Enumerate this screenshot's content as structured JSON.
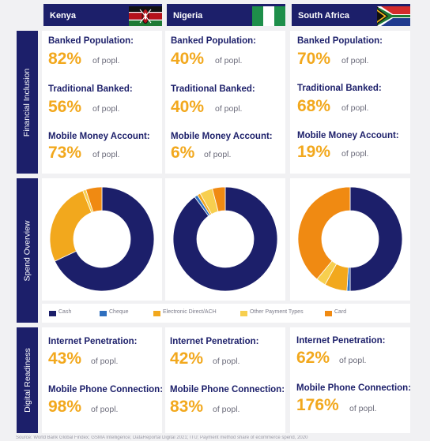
{
  "countries": [
    {
      "name": "Kenya",
      "flag_icon": "kenya-flag-icon",
      "financial_inclusion": [
        {
          "label": "Banked Population:",
          "value": "82%",
          "unit": "of popl."
        },
        {
          "label": "Traditional Banked:",
          "value": "56%",
          "unit": "of popl."
        },
        {
          "label": "Mobile Money Account:",
          "value": "73%",
          "unit": "of popl."
        }
      ],
      "digital_readiness": [
        {
          "label": "Internet Penetration:",
          "value": "43%",
          "unit": "of popl."
        },
        {
          "label": "Mobile Phone Connection:",
          "value": "98%",
          "unit": "of popl."
        }
      ]
    },
    {
      "name": "Nigeria",
      "flag_icon": "nigeria-flag-icon",
      "financial_inclusion": [
        {
          "label": "Banked Population:",
          "value": "40%",
          "unit": "of popl."
        },
        {
          "label": "Traditional Banked:",
          "value": "40%",
          "unit": "of popl."
        },
        {
          "label": "Mobile Money Account:",
          "value": "6%",
          "unit": "of popl."
        }
      ],
      "digital_readiness": [
        {
          "label": "Internet Penetration:",
          "value": "42%",
          "unit": "of popl."
        },
        {
          "label": "Mobile Phone Connection:",
          "value": "83%",
          "unit": "of popl."
        }
      ]
    },
    {
      "name": "South Africa",
      "flag_icon": "south-africa-flag-icon",
      "financial_inclusion": [
        {
          "label": "Banked Population:",
          "value": "70%",
          "unit": "of popl."
        },
        {
          "label": "Traditional Banked:",
          "value": "68%",
          "unit": "of popl."
        },
        {
          "label": "Mobile Money Account:",
          "value": "19%",
          "unit": "of popl."
        }
      ],
      "digital_readiness": [
        {
          "label": "Internet Penetration:",
          "value": "62%",
          "unit": "of popl."
        },
        {
          "label": "Mobile Phone Connection:",
          "value": "176%",
          "unit": "of popl."
        }
      ]
    }
  ],
  "sections": {
    "financial_inclusion": "Financial Inclusion",
    "spend_overview": "Spend Overview",
    "digital_readiness": "Digital Readiness"
  },
  "legend": [
    {
      "label": "Cash",
      "color": "#1c1f6a"
    },
    {
      "label": "Cheque",
      "color": "#2f6fbe"
    },
    {
      "label": "Electronic Direct/ACH",
      "color": "#f2a81d"
    },
    {
      "label": "Other Payment Types",
      "color": "#f7cf4f"
    },
    {
      "label": "Card",
      "color": "#f08a12"
    }
  ],
  "chart_data": [
    {
      "type": "pie",
      "title": "",
      "labels": [
        "Cash",
        "Cheque",
        "Electronic Direct/ACH",
        "Other Payment Types",
        "Card"
      ],
      "values": [
        68,
        0,
        26,
        1,
        5
      ]
    },
    {
      "type": "pie",
      "title": "",
      "labels": [
        "Cash",
        "Cheque",
        "Electronic Direct/ACH",
        "Other Payment Types",
        "Card"
      ],
      "values": [
        90,
        1,
        1,
        4,
        4
      ]
    },
    {
      "type": "pie",
      "title": "",
      "labels": [
        "Cash",
        "Cheque",
        "Electronic Direct/ACH",
        "Other Payment Types",
        "Card"
      ],
      "values": [
        50,
        1,
        7,
        3,
        39
      ]
    }
  ],
  "footnote": "Source: World Bank Global Findex; GSMA Intelligence; DataReportal Digital 2021; ITU; Payment method share of ecommerce spend, 2020"
}
